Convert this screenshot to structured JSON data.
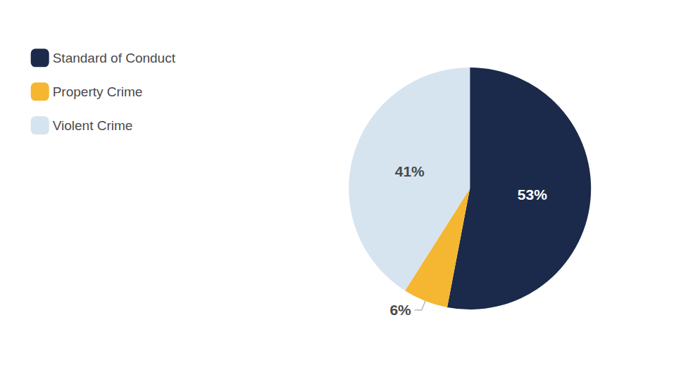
{
  "chart_data": {
    "type": "pie",
    "categories": [
      "Standard of Conduct",
      "Property Crime",
      "Violent Crime"
    ],
    "values": [
      53,
      6,
      41
    ],
    "value_labels": [
      "53%",
      "6%",
      "41%"
    ],
    "colors": [
      "#1b2a4a",
      "#f5b731",
      "#d6e4f0"
    ],
    "data_labels": true,
    "legend": "upper left"
  }
}
